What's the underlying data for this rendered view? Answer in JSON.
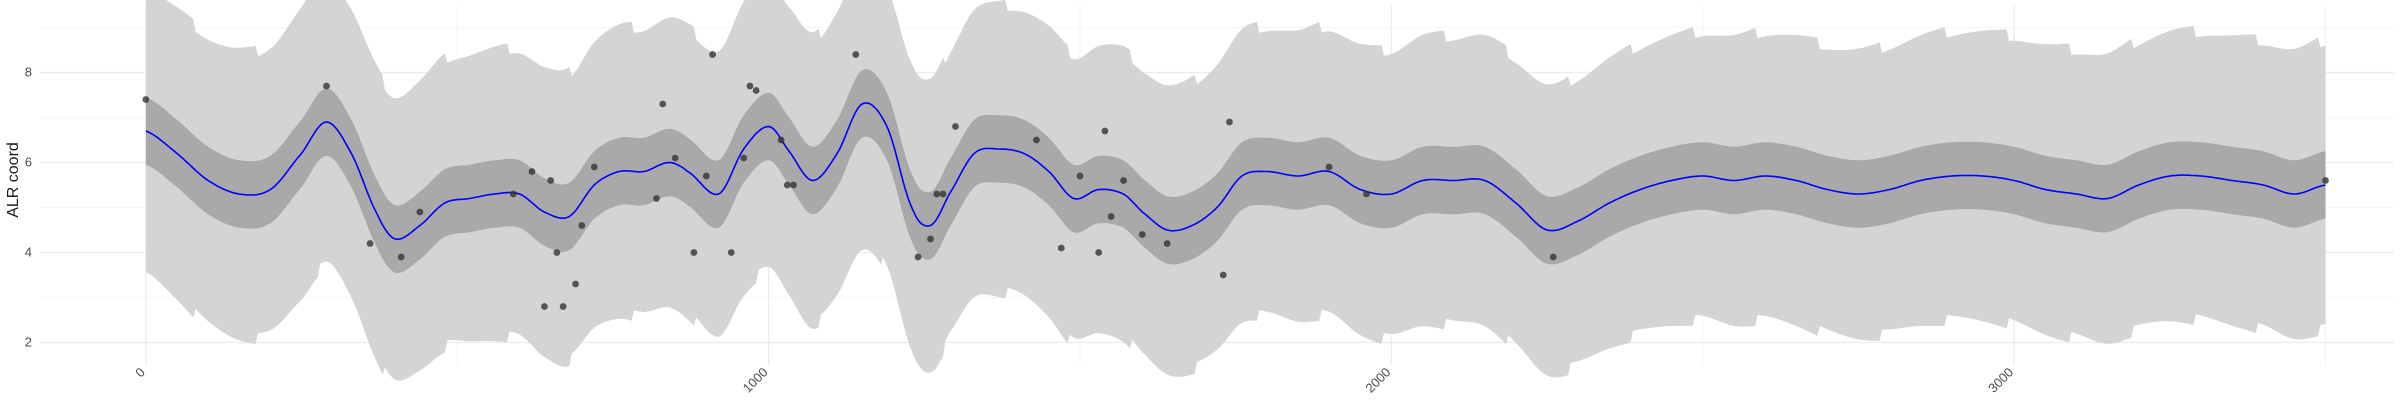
{
  "chart_data": {
    "type": "line",
    "title": "",
    "xlabel": "",
    "ylabel": "ALR coord",
    "xlim": [
      -170,
      3610
    ],
    "ylim": [
      1.5,
      9.5
    ],
    "x_ticks": [
      0,
      1000,
      2000,
      3000
    ],
    "x_tick_labels": [
      "0",
      "1000",
      "2000",
      "3000"
    ],
    "y_ticks": [
      2,
      4,
      6,
      8
    ],
    "y_tick_labels": [
      "2",
      "4",
      "6",
      "8"
    ],
    "grid": true,
    "legend": "none",
    "colors": {
      "mean_line": "#0000ff",
      "inner_band": "#a9a9a9",
      "outer_band": "#d4d4d4",
      "points": "#333333",
      "grid": "#ebebeb"
    },
    "series": [
      {
        "type": "line",
        "x": [
          0,
          50,
          100,
          150,
          200,
          250,
          290,
          330,
          370,
          400,
          440,
          480,
          520,
          560,
          600,
          640,
          680,
          720,
          760,
          800,
          840,
          870,
          920,
          960,
          1000,
          1030,
          1070,
          1110,
          1150,
          1190,
          1230,
          1260,
          1290,
          1330,
          1370,
          1410,
          1450,
          1490,
          1530,
          1570,
          1600,
          1640,
          1680,
          1720,
          1760,
          1800,
          1850,
          1900,
          1950,
          2000,
          2050,
          2100,
          2150,
          2200,
          2250,
          2300,
          2350,
          2400,
          2450,
          2500,
          2550,
          2600,
          2650,
          2700,
          2750,
          2800,
          2850,
          2900,
          2950,
          3000,
          3050,
          3100,
          3150,
          3200,
          3250,
          3300,
          3350,
          3400,
          3450,
          3500
        ],
        "mean": [
          6.7,
          6.2,
          5.6,
          5.3,
          5.4,
          6.2,
          6.9,
          6.2,
          4.9,
          4.3,
          4.6,
          5.1,
          5.2,
          5.3,
          5.3,
          4.9,
          4.8,
          5.5,
          5.8,
          5.8,
          6.0,
          5.8,
          5.3,
          6.3,
          6.8,
          6.3,
          5.6,
          6.2,
          7.3,
          6.8,
          5.0,
          4.6,
          5.3,
          6.2,
          6.3,
          6.2,
          5.8,
          5.2,
          5.4,
          5.3,
          4.9,
          4.5,
          4.6,
          5.0,
          5.7,
          5.8,
          5.7,
          5.8,
          5.4,
          5.3,
          5.6,
          5.6,
          5.6,
          5.1,
          4.5,
          4.7,
          5.1,
          5.4,
          5.6,
          5.7,
          5.6,
          5.7,
          5.6,
          5.4,
          5.3,
          5.4,
          5.6,
          5.7,
          5.7,
          5.6,
          5.4,
          5.3,
          5.2,
          5.5,
          5.7,
          5.7,
          5.6,
          5.5,
          5.3,
          5.5
        ],
        "inner_band_half_width": 0.75,
        "outer_band_half_width": 3.2
      },
      {
        "type": "scatter",
        "x": [
          0,
          290,
          360,
          410,
          440,
          590,
          620,
          640,
          650,
          660,
          670,
          690,
          700,
          720,
          820,
          830,
          850,
          880,
          900,
          910,
          940,
          960,
          970,
          980,
          1020,
          1030,
          1040,
          1140,
          1240,
          1260,
          1270,
          1280,
          1300,
          1430,
          1470,
          1500,
          1530,
          1540,
          1550,
          1570,
          1600,
          1640,
          1730,
          1740,
          1900,
          1960,
          2260,
          3500
        ],
        "y": [
          7.4,
          7.7,
          4.2,
          3.9,
          4.9,
          5.3,
          5.8,
          2.8,
          5.6,
          4.0,
          2.8,
          3.3,
          4.6,
          5.9,
          5.2,
          7.3,
          6.1,
          4.0,
          5.7,
          8.4,
          4.0,
          6.1,
          7.7,
          7.6,
          6.5,
          5.5,
          5.5,
          8.4,
          3.9,
          4.3,
          5.3,
          5.3,
          6.8,
          6.5,
          4.1,
          5.7,
          4.0,
          6.7,
          4.8,
          5.6,
          4.4,
          4.2,
          3.5,
          6.9,
          5.9,
          5.3,
          3.9,
          5.6
        ]
      }
    ]
  }
}
